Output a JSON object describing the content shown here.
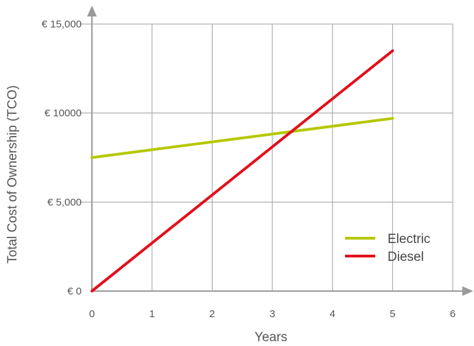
{
  "chart_data": {
    "type": "line",
    "title": "",
    "xlabel": "Years",
    "ylabel": "Total Cost of Ownership (TCO)",
    "x_ticks": [
      0,
      1,
      2,
      3,
      4,
      5,
      6
    ],
    "x_tick_labels": [
      "0",
      "1",
      "2",
      "3",
      "4",
      "5",
      "6"
    ],
    "y_ticks": [
      0,
      5000,
      10000,
      15000
    ],
    "y_tick_labels": [
      "€ 0",
      "€ 5,000",
      "€ 10000",
      "€ 15,000"
    ],
    "xlim": [
      0,
      6
    ],
    "ylim": [
      0,
      15000
    ],
    "grid": true,
    "legend_position": "bottom-right",
    "series": [
      {
        "name": "Electric",
        "color": "#b5c800",
        "x": [
          0,
          5
        ],
        "y": [
          7500,
          9700
        ]
      },
      {
        "name": "Diesel",
        "color": "#e2101b",
        "x": [
          0,
          5
        ],
        "y": [
          0,
          13500
        ]
      }
    ]
  }
}
